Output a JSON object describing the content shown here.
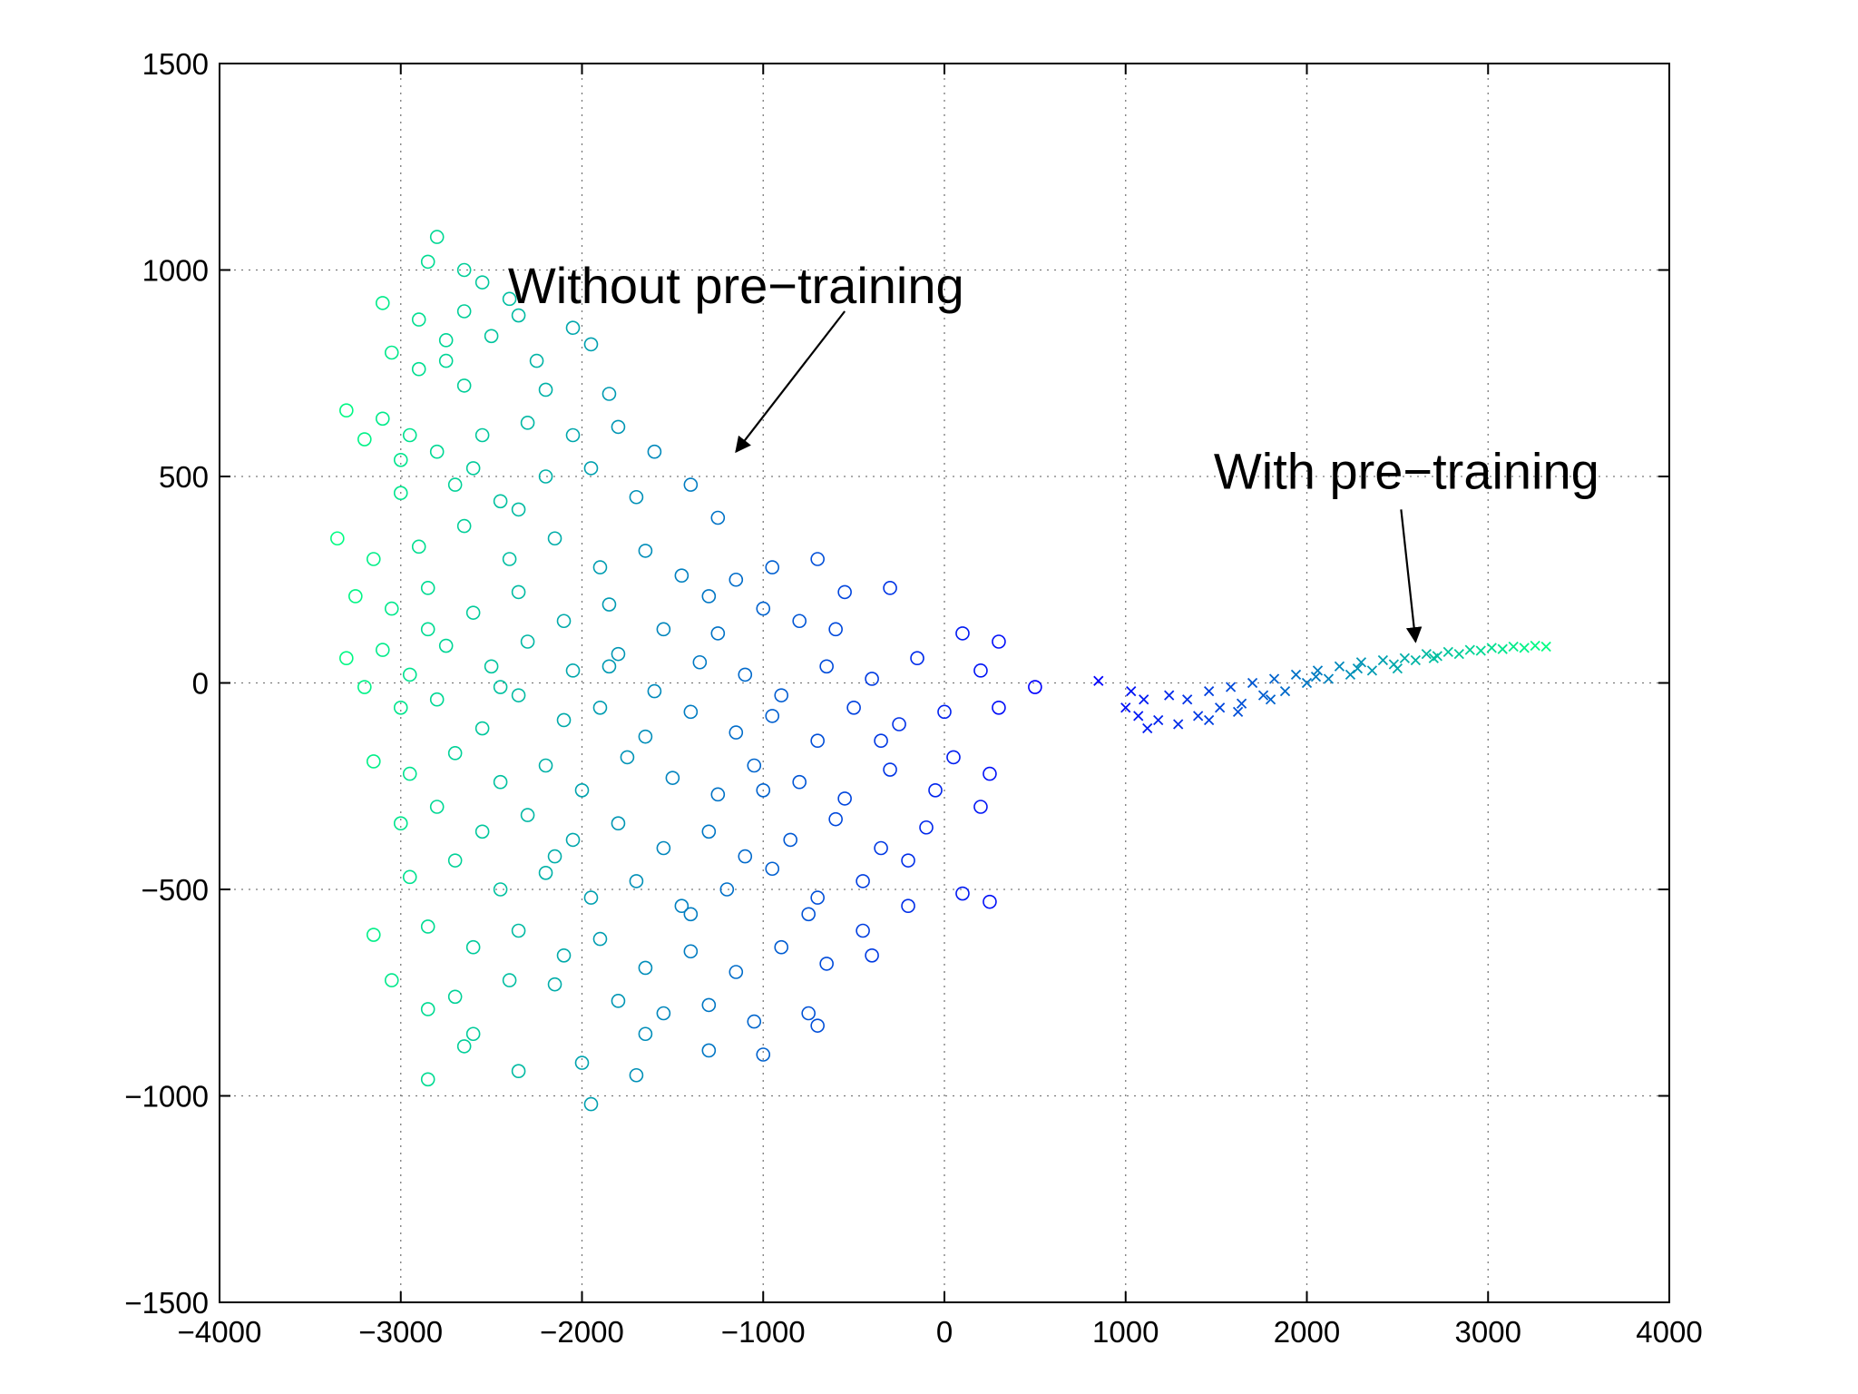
{
  "chart_data": {
    "type": "scatter",
    "title": "",
    "xlabel": "",
    "ylabel": "",
    "xlim": [
      -4000,
      4000
    ],
    "ylim": [
      -1500,
      1500
    ],
    "xticks": [
      -4000,
      -3000,
      -2000,
      -1000,
      0,
      1000,
      2000,
      3000,
      4000
    ],
    "yticks": [
      -1500,
      -1000,
      -500,
      0,
      500,
      1000,
      1500
    ],
    "xtick_labels": [
      "−4000",
      "−3000",
      "−2000",
      "−1000",
      "0",
      "1000",
      "2000",
      "3000",
      "4000"
    ],
    "ytick_labels": [
      "−1500",
      "−1000",
      "−500",
      "0",
      "500",
      "1000",
      "1500"
    ],
    "grid": true,
    "colormap": [
      "#00ff80",
      "#0000ff"
    ],
    "annotations": [
      {
        "text": "Without pre−training",
        "anchor": [
          -1150,
          920
        ],
        "arrow_from": [
          -550,
          900
        ],
        "arrow_to": [
          -1150,
          560
        ]
      },
      {
        "text": "With pre−training",
        "anchor": [
          2550,
          470
        ],
        "arrow_from": [
          2520,
          420
        ],
        "arrow_to": [
          2600,
          100
        ]
      }
    ],
    "series": [
      {
        "marker": "circle",
        "x_range": [
          -3400,
          500
        ],
        "y_range": [
          -1020,
          1090
        ],
        "points": [
          [
            -2800,
            1080
          ],
          [
            -2850,
            1020
          ],
          [
            -2650,
            1000
          ],
          [
            -2550,
            970
          ],
          [
            -2400,
            930
          ],
          [
            -3100,
            920
          ],
          [
            -2900,
            880
          ],
          [
            -2750,
            830
          ],
          [
            -2500,
            840
          ],
          [
            -2350,
            890
          ],
          [
            -2050,
            860
          ],
          [
            -1950,
            820
          ],
          [
            -3050,
            800
          ],
          [
            -2900,
            760
          ],
          [
            -2650,
            720
          ],
          [
            -2200,
            710
          ],
          [
            -1850,
            700
          ],
          [
            -3300,
            660
          ],
          [
            -3100,
            640
          ],
          [
            -2950,
            600
          ],
          [
            -2800,
            560
          ],
          [
            -2550,
            600
          ],
          [
            -2300,
            630
          ],
          [
            -2050,
            600
          ],
          [
            -1800,
            620
          ],
          [
            -1600,
            560
          ],
          [
            -3200,
            590
          ],
          [
            -3000,
            540
          ],
          [
            -2700,
            480
          ],
          [
            -2450,
            440
          ],
          [
            -2200,
            500
          ],
          [
            -1950,
            520
          ],
          [
            -1700,
            450
          ],
          [
            -1400,
            480
          ],
          [
            -1250,
            400
          ],
          [
            -3350,
            350
          ],
          [
            -3150,
            300
          ],
          [
            -2900,
            330
          ],
          [
            -2650,
            380
          ],
          [
            -2400,
            300
          ],
          [
            -2150,
            350
          ],
          [
            -1900,
            280
          ],
          [
            -1650,
            320
          ],
          [
            -1450,
            260
          ],
          [
            -1150,
            250
          ],
          [
            -950,
            280
          ],
          [
            -700,
            300
          ],
          [
            -3250,
            210
          ],
          [
            -3050,
            180
          ],
          [
            -2850,
            230
          ],
          [
            -2600,
            170
          ],
          [
            -2350,
            220
          ],
          [
            -2100,
            150
          ],
          [
            -1850,
            190
          ],
          [
            -1550,
            130
          ],
          [
            -1300,
            210
          ],
          [
            -1000,
            180
          ],
          [
            -800,
            150
          ],
          [
            -550,
            220
          ],
          [
            -300,
            230
          ],
          [
            -3300,
            60
          ],
          [
            -3100,
            80
          ],
          [
            -2950,
            20
          ],
          [
            -2750,
            90
          ],
          [
            -2500,
            40
          ],
          [
            -2300,
            100
          ],
          [
            -2050,
            30
          ],
          [
            -1800,
            70
          ],
          [
            -1600,
            -20
          ],
          [
            -1350,
            50
          ],
          [
            -1100,
            20
          ],
          [
            -900,
            -30
          ],
          [
            -650,
            40
          ],
          [
            -400,
            10
          ],
          [
            -150,
            60
          ],
          [
            100,
            120
          ],
          [
            300,
            100
          ],
          [
            -3200,
            -10
          ],
          [
            -3000,
            -60
          ],
          [
            -2800,
            -40
          ],
          [
            -2550,
            -110
          ],
          [
            -2350,
            -30
          ],
          [
            -2100,
            -90
          ],
          [
            -1900,
            -60
          ],
          [
            -1650,
            -130
          ],
          [
            -1400,
            -70
          ],
          [
            -1150,
            -120
          ],
          [
            -950,
            -80
          ],
          [
            -700,
            -140
          ],
          [
            -500,
            -60
          ],
          [
            -250,
            -100
          ],
          [
            0,
            -70
          ],
          [
            300,
            -60
          ],
          [
            -3150,
            -190
          ],
          [
            -2950,
            -220
          ],
          [
            -2700,
            -170
          ],
          [
            -2450,
            -240
          ],
          [
            -2200,
            -200
          ],
          [
            -2000,
            -260
          ],
          [
            -1750,
            -180
          ],
          [
            -1500,
            -230
          ],
          [
            -1250,
            -270
          ],
          [
            -1050,
            -200
          ],
          [
            -800,
            -240
          ],
          [
            -550,
            -280
          ],
          [
            -300,
            -210
          ],
          [
            -50,
            -260
          ],
          [
            250,
            -220
          ],
          [
            -3000,
            -340
          ],
          [
            -2800,
            -300
          ],
          [
            -2550,
            -360
          ],
          [
            -2300,
            -320
          ],
          [
            -2050,
            -380
          ],
          [
            -1800,
            -340
          ],
          [
            -1550,
            -400
          ],
          [
            -1300,
            -360
          ],
          [
            -1100,
            -420
          ],
          [
            -850,
            -380
          ],
          [
            -600,
            -330
          ],
          [
            -350,
            -400
          ],
          [
            -100,
            -350
          ],
          [
            200,
            -300
          ],
          [
            -2950,
            -470
          ],
          [
            -2700,
            -430
          ],
          [
            -2450,
            -500
          ],
          [
            -2200,
            -460
          ],
          [
            -1950,
            -520
          ],
          [
            -1700,
            -480
          ],
          [
            -1450,
            -540
          ],
          [
            -1200,
            -500
          ],
          [
            -950,
            -450
          ],
          [
            -700,
            -520
          ],
          [
            -450,
            -480
          ],
          [
            -200,
            -540
          ],
          [
            100,
            -510
          ],
          [
            250,
            -530
          ],
          [
            -3150,
            -610
          ],
          [
            -2850,
            -590
          ],
          [
            -2600,
            -640
          ],
          [
            -2350,
            -600
          ],
          [
            -2100,
            -660
          ],
          [
            -1900,
            -620
          ],
          [
            -1650,
            -690
          ],
          [
            -1400,
            -650
          ],
          [
            -1150,
            -700
          ],
          [
            -900,
            -640
          ],
          [
            -650,
            -680
          ],
          [
            -400,
            -660
          ],
          [
            -3050,
            -720
          ],
          [
            -2700,
            -760
          ],
          [
            -2400,
            -720
          ],
          [
            -2150,
            -730
          ],
          [
            -1800,
            -770
          ],
          [
            -1550,
            -800
          ],
          [
            -1300,
            -780
          ],
          [
            -1050,
            -820
          ],
          [
            -750,
            -800
          ],
          [
            -2850,
            -790
          ],
          [
            -2600,
            -850
          ],
          [
            -1650,
            -850
          ],
          [
            -1300,
            -890
          ],
          [
            -1000,
            -900
          ],
          [
            -2850,
            -960
          ],
          [
            -2350,
            -940
          ],
          [
            -2000,
            -920
          ],
          [
            -1700,
            -950
          ],
          [
            -1950,
            -1020
          ],
          [
            -2650,
            -880
          ],
          [
            -700,
            -830
          ],
          [
            -450,
            -600
          ],
          [
            -200,
            -430
          ],
          [
            50,
            -180
          ],
          [
            200,
            30
          ],
          [
            500,
            -10
          ],
          [
            -2250,
            780
          ],
          [
            -2750,
            780
          ],
          [
            -2650,
            900
          ],
          [
            -3000,
            460
          ],
          [
            -2600,
            520
          ],
          [
            -2350,
            420
          ],
          [
            -2850,
            130
          ],
          [
            -2450,
            -10
          ],
          [
            -2150,
            -420
          ],
          [
            -1850,
            40
          ],
          [
            -1400,
            -560
          ],
          [
            -1250,
            120
          ],
          [
            -1000,
            -260
          ],
          [
            -750,
            -560
          ],
          [
            -600,
            130
          ],
          [
            -350,
            -140
          ]
        ]
      },
      {
        "marker": "x",
        "x_range": [
          850,
          3330
        ],
        "y_range": [
          -130,
          100
        ],
        "points": [
          [
            850,
            5
          ],
          [
            1000,
            -60
          ],
          [
            1030,
            -20
          ],
          [
            1070,
            -80
          ],
          [
            1120,
            -110
          ],
          [
            1180,
            -90
          ],
          [
            1240,
            -30
          ],
          [
            1290,
            -100
          ],
          [
            1340,
            -40
          ],
          [
            1400,
            -80
          ],
          [
            1460,
            -20
          ],
          [
            1520,
            -60
          ],
          [
            1580,
            -10
          ],
          [
            1640,
            -50
          ],
          [
            1700,
            0
          ],
          [
            1760,
            -30
          ],
          [
            1820,
            10
          ],
          [
            1880,
            -20
          ],
          [
            1940,
            20
          ],
          [
            2000,
            0
          ],
          [
            2060,
            30
          ],
          [
            2120,
            10
          ],
          [
            2180,
            40
          ],
          [
            2240,
            20
          ],
          [
            2300,
            50
          ],
          [
            2360,
            30
          ],
          [
            2420,
            55
          ],
          [
            2480,
            45
          ],
          [
            2540,
            60
          ],
          [
            2600,
            55
          ],
          [
            2660,
            70
          ],
          [
            2720,
            65
          ],
          [
            2780,
            75
          ],
          [
            2840,
            70
          ],
          [
            2900,
            80
          ],
          [
            2960,
            78
          ],
          [
            3020,
            85
          ],
          [
            3080,
            82
          ],
          [
            3140,
            88
          ],
          [
            3200,
            85
          ],
          [
            3260,
            90
          ],
          [
            3320,
            88
          ],
          [
            1100,
            -40
          ],
          [
            1460,
            -90
          ],
          [
            1620,
            -70
          ],
          [
            1800,
            -40
          ],
          [
            2050,
            15
          ],
          [
            2280,
            35
          ],
          [
            2500,
            35
          ],
          [
            2700,
            60
          ]
        ]
      }
    ]
  }
}
